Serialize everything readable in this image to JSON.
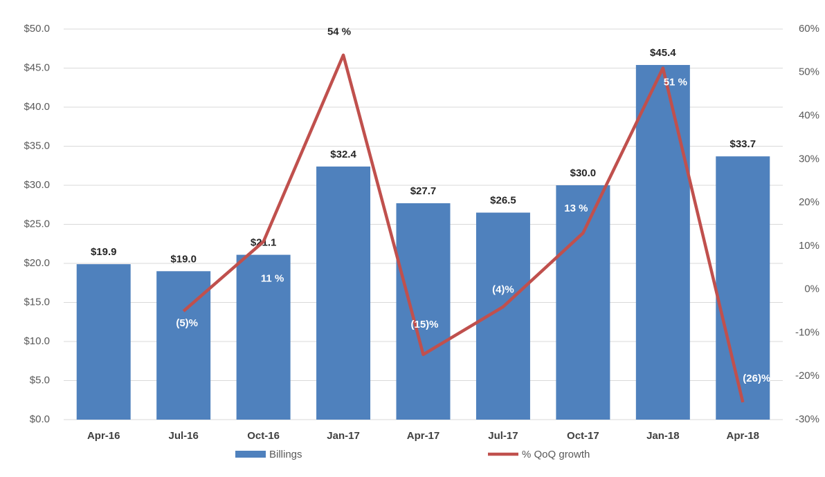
{
  "chart_data": {
    "type": "bar-line",
    "categories": [
      "Apr-16",
      "Jul-16",
      "Oct-16",
      "Jan-17",
      "Apr-17",
      "Jul-17",
      "Oct-17",
      "Jan-18",
      "Apr-18"
    ],
    "series": [
      {
        "name": "Billings",
        "type": "bar",
        "color": "#4f81bd",
        "values": [
          19.9,
          19.0,
          21.1,
          32.4,
          27.7,
          26.5,
          30.0,
          45.4,
          33.7
        ],
        "value_labels": [
          "$19.9",
          "$19.0",
          "$21.1",
          "$32.4",
          "$27.7",
          "$26.5",
          "$30.0",
          "$45.4",
          "$33.7"
        ]
      },
      {
        "name": "% QoQ growth",
        "type": "line",
        "axis": "y2",
        "color": "#c0504d",
        "values": [
          null,
          -5,
          11,
          54,
          -15,
          -4,
          13,
          51,
          -26
        ],
        "value_labels": [
          null,
          "(5)%",
          "11 %",
          "54 %",
          "(15)%",
          "(4)%",
          "13 %",
          "51 %",
          "(26)%"
        ]
      }
    ],
    "ylim": [
      0,
      50
    ],
    "yticks": [
      {
        "value": 0,
        "label": "$0.0"
      },
      {
        "value": 5,
        "label": "$5.0"
      },
      {
        "value": 10,
        "label": "$10.0"
      },
      {
        "value": 15,
        "label": "$15.0"
      },
      {
        "value": 20,
        "label": "$20.0"
      },
      {
        "value": 25,
        "label": "$25.0"
      },
      {
        "value": 30,
        "label": "$30.0"
      },
      {
        "value": 35,
        "label": "$35.0"
      },
      {
        "value": 40,
        "label": "$40.0"
      },
      {
        "value": 45,
        "label": "$45.0"
      },
      {
        "value": 50,
        "label": "$50.0"
      }
    ],
    "y2lim": [
      -30,
      60
    ],
    "y2ticks": [
      {
        "value": -30,
        "label": "-30%"
      },
      {
        "value": -20,
        "label": "-20%"
      },
      {
        "value": -10,
        "label": "-10%"
      },
      {
        "value": 0,
        "label": "0%"
      },
      {
        "value": 10,
        "label": "10%"
      },
      {
        "value": 20,
        "label": "20%"
      },
      {
        "value": 30,
        "label": "30%"
      },
      {
        "value": 40,
        "label": "40%"
      },
      {
        "value": 50,
        "label": "50%"
      },
      {
        "value": 60,
        "label": "60%"
      }
    ],
    "grid": true,
    "legend": "bottom"
  }
}
